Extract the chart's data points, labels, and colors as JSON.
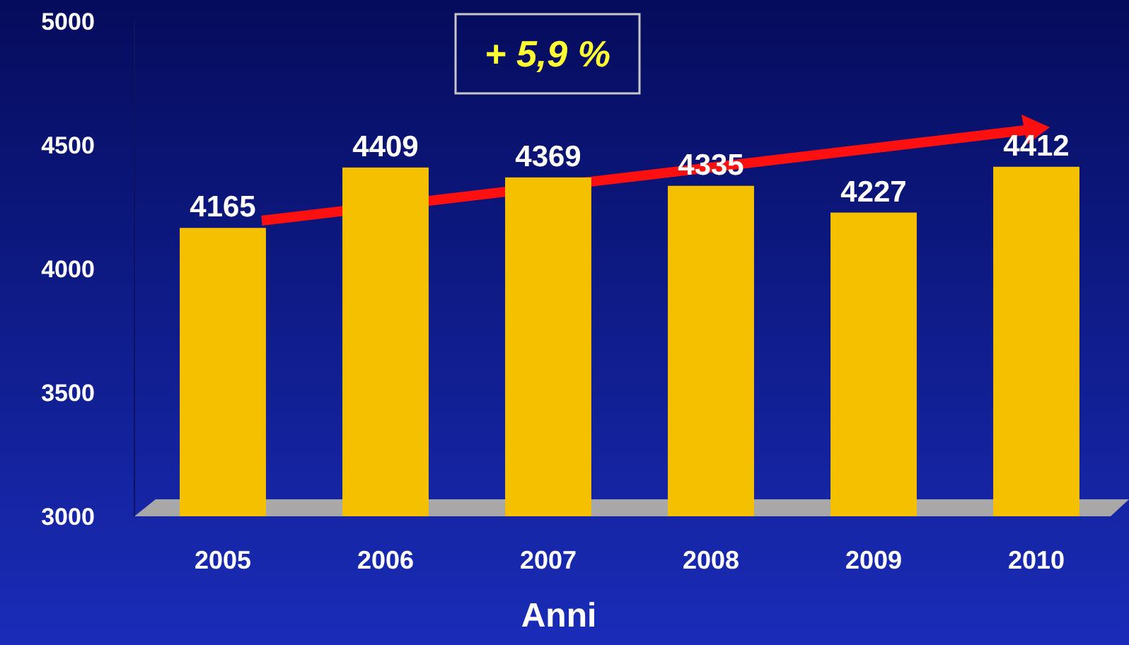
{
  "chart_data": {
    "type": "bar",
    "xlabel": "Anni",
    "categories": [
      "2005",
      "2006",
      "2007",
      "2008",
      "2009",
      "2010"
    ],
    "values": [
      4165,
      4409,
      4369,
      4335,
      4227,
      4412
    ],
    "color": "#f5c000",
    "ylim": [
      3000,
      5000
    ],
    "yticks": [
      3000,
      3500,
      4000,
      4500,
      5000
    ],
    "grid": false,
    "data_labels": true,
    "annotations": [
      "+ 5,9 %"
    ]
  }
}
